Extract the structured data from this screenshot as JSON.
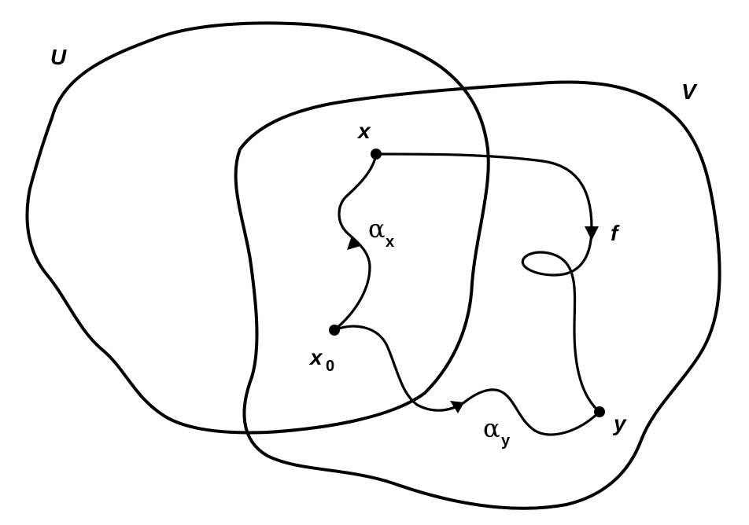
{
  "figure": {
    "sets": [
      {
        "id": "U",
        "label": "U"
      },
      {
        "id": "V",
        "label": "V"
      }
    ],
    "points": [
      {
        "id": "x",
        "label": "x",
        "sub": ""
      },
      {
        "id": "x0",
        "label": "x",
        "sub": "0"
      },
      {
        "id": "y",
        "label": "y",
        "sub": ""
      }
    ],
    "paths": [
      {
        "id": "alpha_x",
        "label": "α",
        "sub": "x",
        "from": "x0",
        "to": "x"
      },
      {
        "id": "alpha_y",
        "label": "α",
        "sub": "y",
        "from": "x0",
        "to": "y"
      },
      {
        "id": "f",
        "label": "f",
        "sub": "",
        "from": "x",
        "to": "y"
      }
    ],
    "stroke_color": "#000000",
    "background_color": "#ffffff"
  }
}
